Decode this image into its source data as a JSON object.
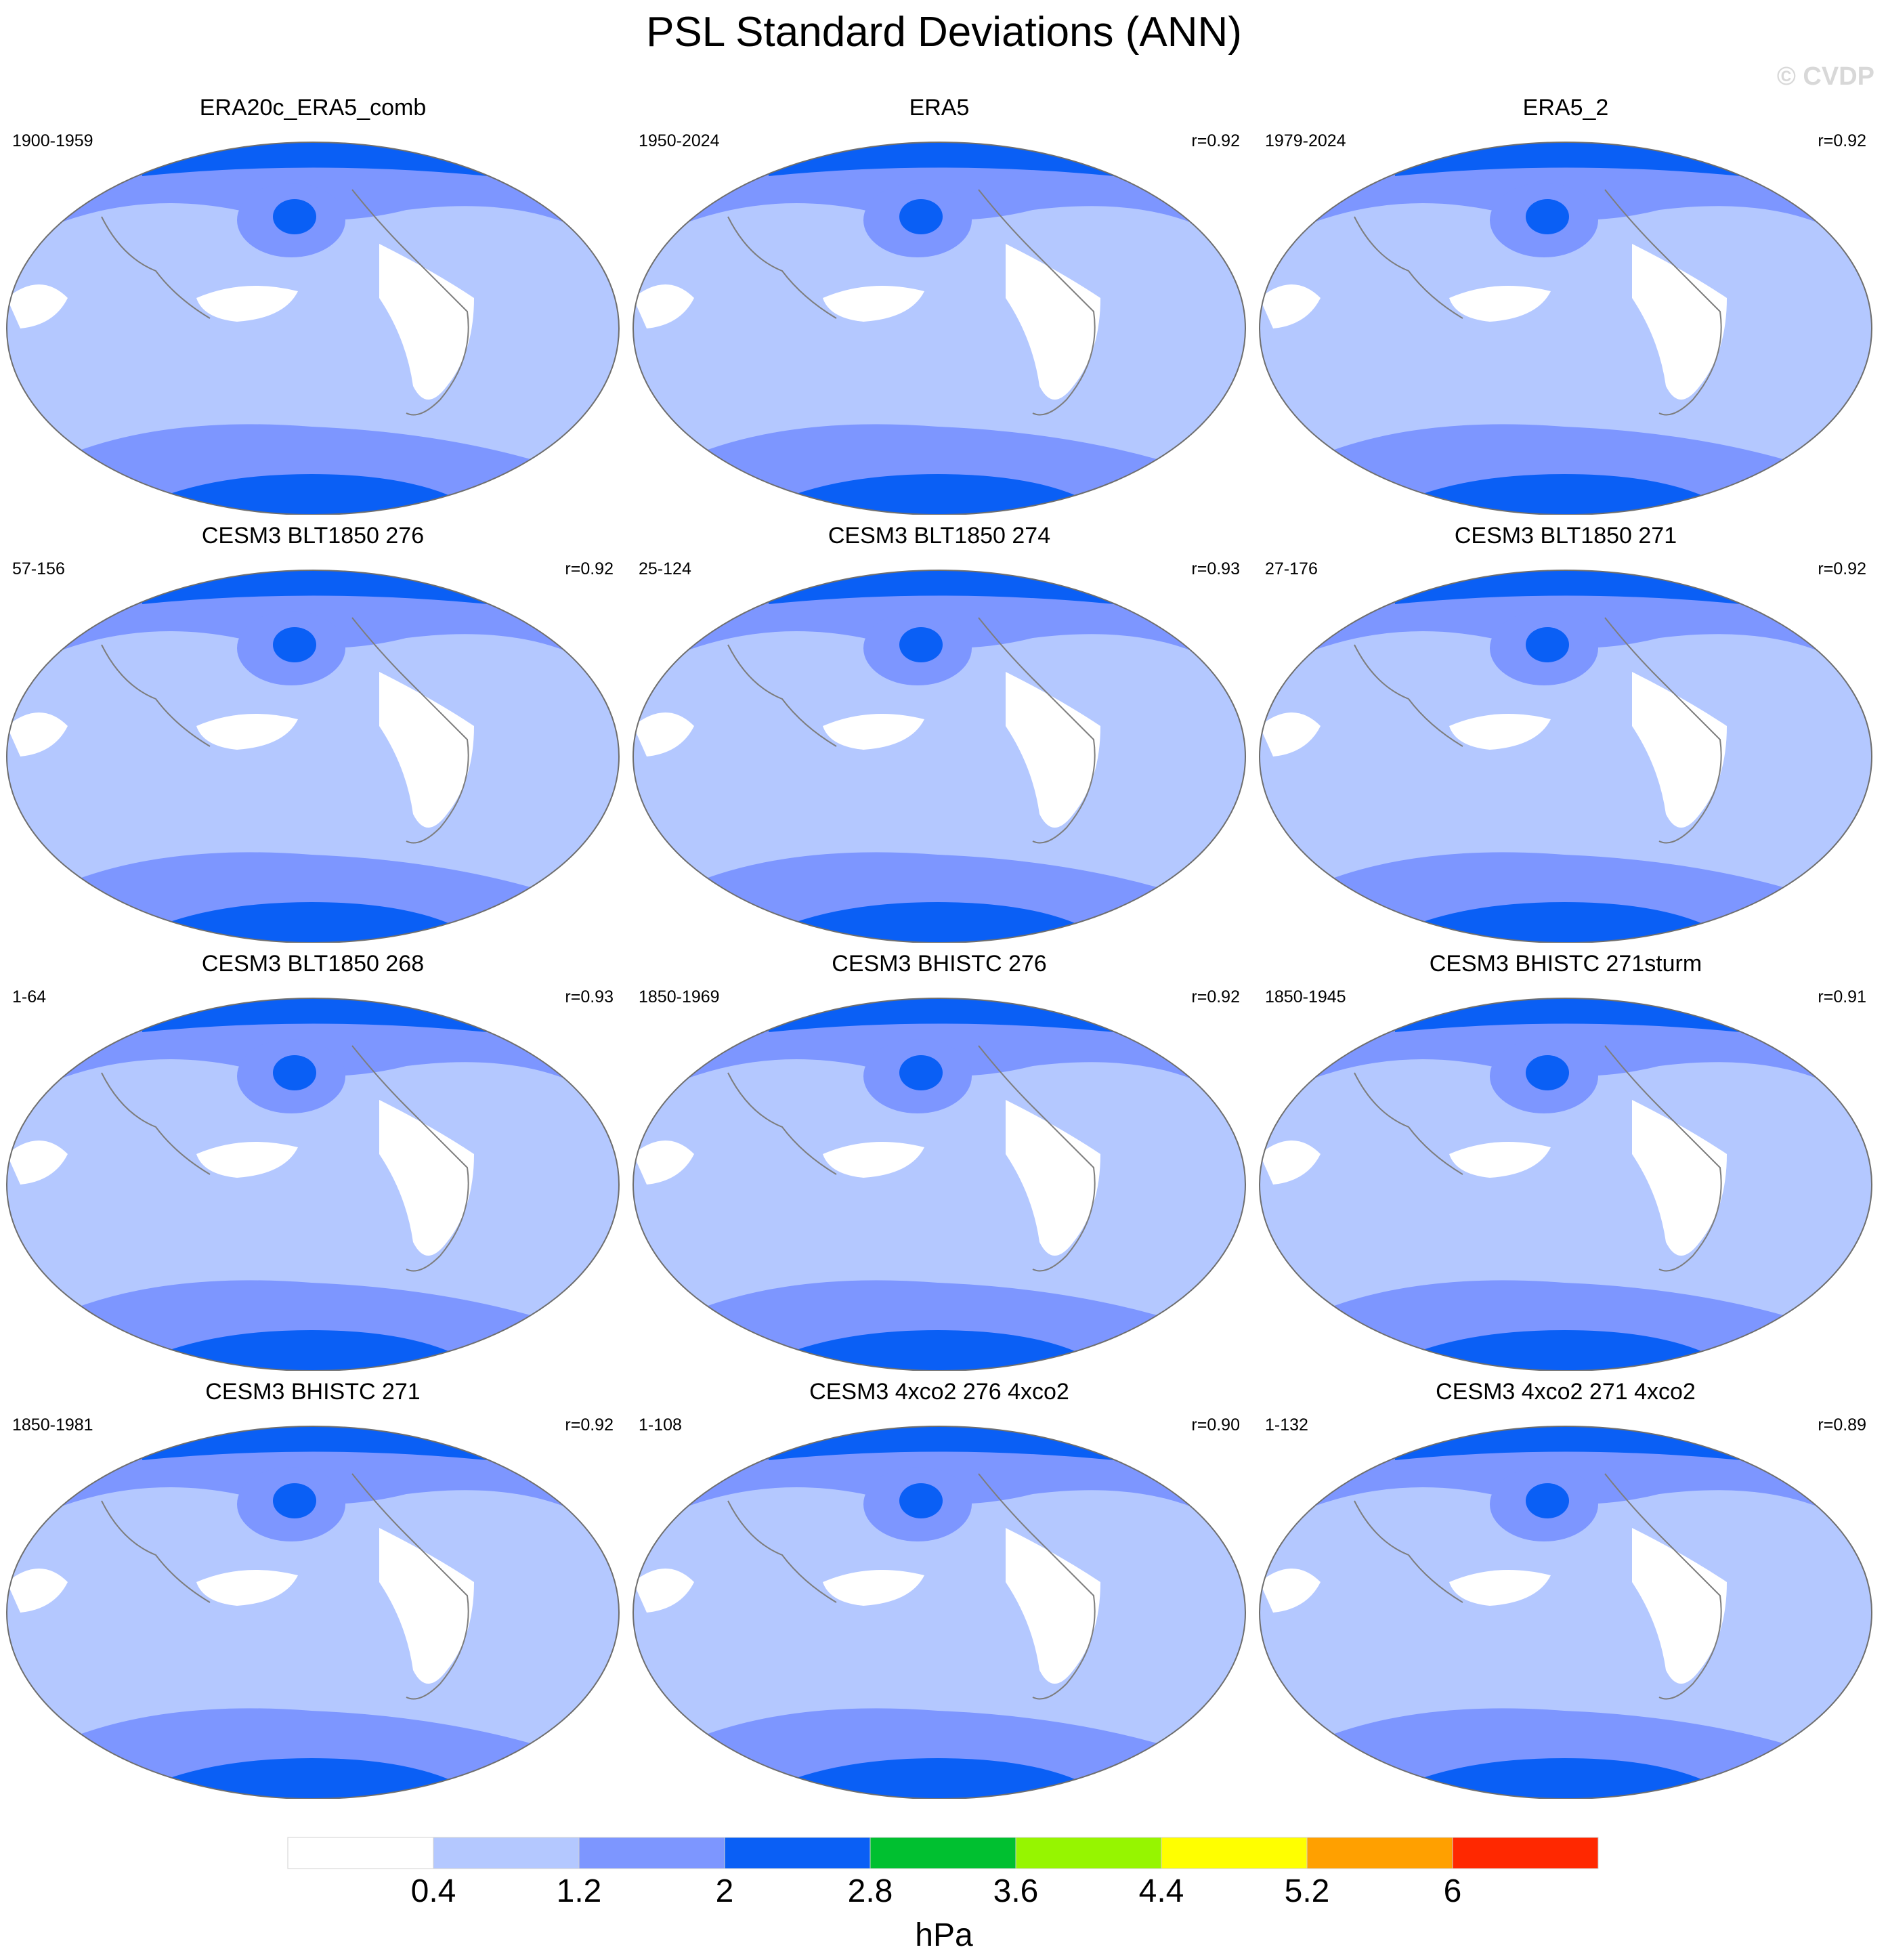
{
  "title": "PSL Standard Deviations (ANN)",
  "watermark": "© CVDP",
  "units": "hPa",
  "chart_data": {
    "type": "heatmap",
    "projection": "Robinson (Pacific-centred)",
    "variable": "PSL standard deviation",
    "season": "ANN",
    "panels": [
      {
        "title": "ERA20c_ERA5_comb",
        "years": "1900-1959",
        "corr": ""
      },
      {
        "title": "ERA5",
        "years": "1950-2024",
        "corr": "r=0.92"
      },
      {
        "title": "ERA5_2",
        "years": "1979-2024",
        "corr": "r=0.92"
      },
      {
        "title": "CESM3 BLT1850 276",
        "years": "57-156",
        "corr": "r=0.92"
      },
      {
        "title": "CESM3 BLT1850 274",
        "years": "25-124",
        "corr": "r=0.93"
      },
      {
        "title": "CESM3 BLT1850 271",
        "years": "27-176",
        "corr": "r=0.92"
      },
      {
        "title": "CESM3 BLT1850 268",
        "years": "1-64",
        "corr": "r=0.93"
      },
      {
        "title": "CESM3 BHISTC 276",
        "years": "1850-1969",
        "corr": "r=0.92"
      },
      {
        "title": "CESM3 BHISTC 271sturm",
        "years": "1850-1945",
        "corr": "r=0.91"
      },
      {
        "title": "CESM3 BHISTC 271",
        "years": "1850-1981",
        "corr": "r=0.92"
      },
      {
        "title": "CESM3 4xco2 276 4xco2",
        "years": "1-108",
        "corr": "r=0.90"
      },
      {
        "title": "CESM3 4xco2 271 4xco2",
        "years": "1-132",
        "corr": "r=0.89"
      }
    ],
    "colorbar": {
      "levels": [
        "0.4",
        "1.2",
        "2",
        "2.8",
        "3.6",
        "4.4",
        "5.2",
        "6"
      ],
      "colors": [
        "#ffffff",
        "#b4c8ff",
        "#7d96ff",
        "#0a5ff5",
        "#00c030",
        "#96f500",
        "#ffff00",
        "#ffa000",
        "#ff2800"
      ]
    }
  }
}
